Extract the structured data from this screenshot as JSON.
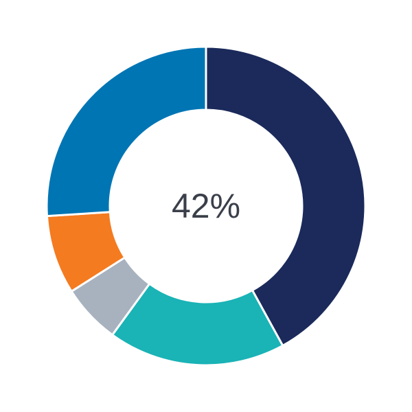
{
  "chart_data": {
    "type": "pie",
    "donut": true,
    "center_label": "42%",
    "start_angle": "top",
    "direction": "clockwise",
    "slices": [
      {
        "value": 42,
        "color": "#1b2a5b"
      },
      {
        "value": 18,
        "color": "#1ab3b6"
      },
      {
        "value": 6,
        "color": "#a8b2bf"
      },
      {
        "value": 8,
        "color": "#f47b20"
      },
      {
        "value": 26,
        "color": "#0075b4"
      }
    ],
    "legend": "none"
  }
}
